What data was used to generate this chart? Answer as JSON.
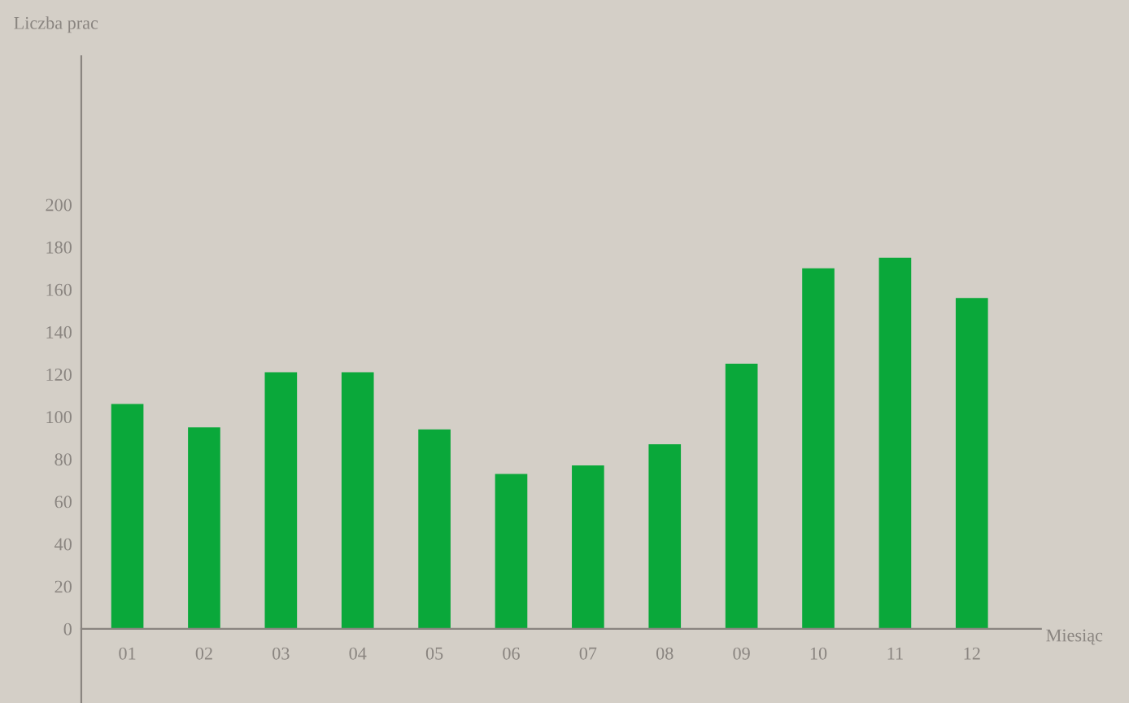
{
  "chart_data": {
    "type": "bar",
    "ylabel": "Liczba prac",
    "xlabel": "Miesiąc",
    "categories": [
      "01",
      "02",
      "03",
      "04",
      "05",
      "06",
      "07",
      "08",
      "09",
      "10",
      "11",
      "12"
    ],
    "values": [
      106,
      95,
      121,
      121,
      94,
      73,
      77,
      87,
      125,
      170,
      175,
      156
    ],
    "color": "#0aa83a",
    "ylim": [
      -35,
      270
    ],
    "yticks": [
      0,
      20,
      40,
      60,
      80,
      100,
      120,
      140,
      160,
      180,
      200
    ],
    "grid": false,
    "legend": false
  }
}
